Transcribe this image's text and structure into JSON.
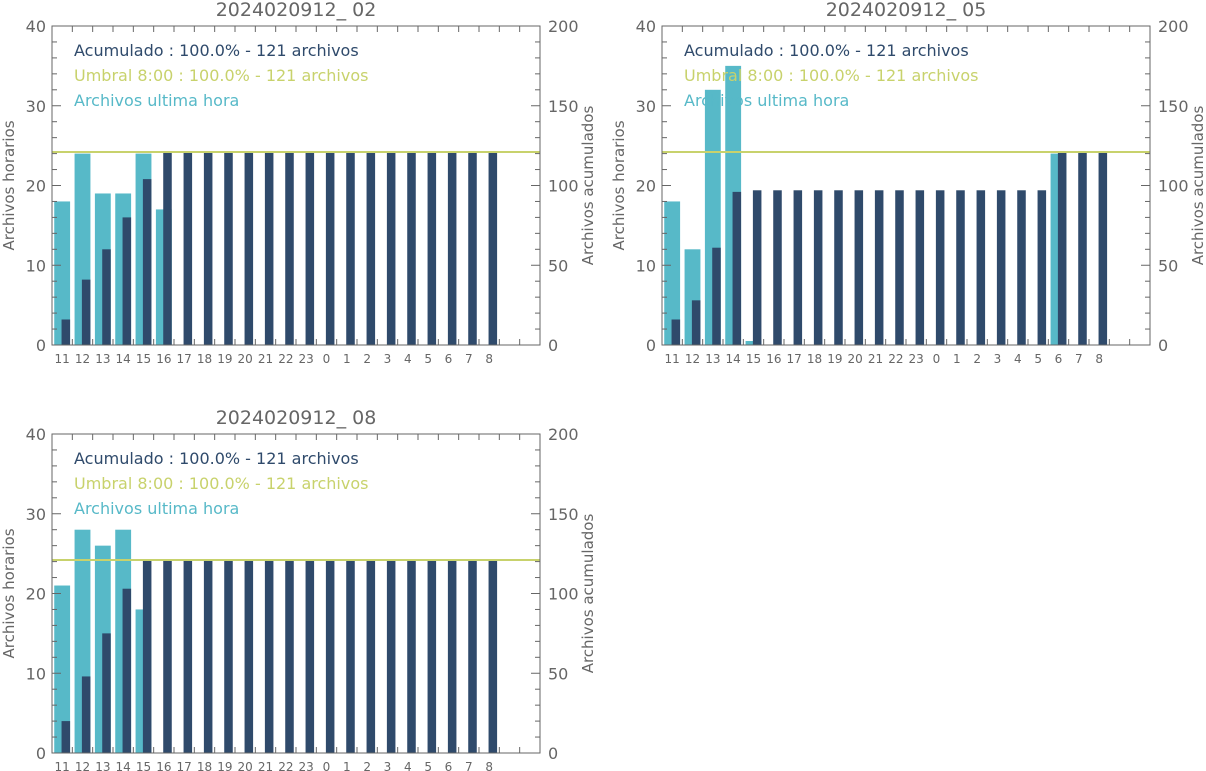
{
  "colors": {
    "accumulated": "#2f4a6b",
    "threshold": "#c8d26c",
    "hourly": "#57b9c8",
    "axis": "#666666"
  },
  "chart_data": [
    {
      "type": "bar",
      "title": "2024020912_ 02",
      "ylabel": "Archivos horarios",
      "y2label": "Archivos acumulados",
      "ylim": [
        0,
        40
      ],
      "y2lim": [
        0,
        200
      ],
      "yticks": [
        "0",
        "10",
        "20",
        "30",
        "40"
      ],
      "y2ticks": [
        "0",
        "50",
        "100",
        "150",
        "200"
      ],
      "categories": [
        "11",
        "12",
        "13",
        "14",
        "15",
        "16",
        "17",
        "18",
        "19",
        "20",
        "21",
        "22",
        "23",
        "0",
        "1",
        "2",
        "3",
        "4",
        "5",
        "6",
        "7",
        "8"
      ],
      "legend": [
        {
          "text": "Acumulado : 100.0% - 121 archivos",
          "color": "#2f4a6b"
        },
        {
          "text": "Umbral 8:00 : 100.0% - 121 archivos",
          "color": "#c8d26c"
        },
        {
          "text": "Archivos ultima hora",
          "color": "#57b9c8"
        }
      ],
      "threshold": 121,
      "series": [
        {
          "name": "Archivos ultima hora",
          "axis": "left",
          "values": [
            18,
            24,
            19,
            19,
            24,
            17,
            0,
            0,
            0,
            0,
            0,
            0,
            0,
            0,
            0,
            0,
            0,
            0,
            0,
            0,
            0,
            0
          ]
        },
        {
          "name": "Acumulado",
          "axis": "right",
          "values": [
            16,
            41,
            60,
            80,
            104,
            121,
            121,
            121,
            121,
            121,
            121,
            121,
            121,
            121,
            121,
            121,
            121,
            121,
            121,
            121,
            121,
            121
          ]
        }
      ]
    },
    {
      "type": "bar",
      "title": "2024020912_ 05",
      "ylabel": "Archivos horarios",
      "y2label": "Archivos acumulados",
      "ylim": [
        0,
        40
      ],
      "y2lim": [
        0,
        200
      ],
      "yticks": [
        "0",
        "10",
        "20",
        "30",
        "40"
      ],
      "y2ticks": [
        "0",
        "50",
        "100",
        "150",
        "200"
      ],
      "categories": [
        "11",
        "12",
        "13",
        "14",
        "15",
        "16",
        "17",
        "18",
        "19",
        "20",
        "21",
        "22",
        "23",
        "0",
        "1",
        "2",
        "3",
        "4",
        "5",
        "6",
        "7",
        "8"
      ],
      "legend": [
        {
          "text": "Acumulado : 100.0% - 121 archivos",
          "color": "#2f4a6b"
        },
        {
          "text": "Umbral 8:00 : 100.0% - 121 archivos",
          "color": "#c8d26c"
        },
        {
          "text": "Archivos ultima hora",
          "color": "#57b9c8"
        }
      ],
      "threshold": 121,
      "series": [
        {
          "name": "Archivos ultima hora",
          "axis": "left",
          "values": [
            18,
            12,
            32,
            35,
            0.5,
            0,
            0,
            0,
            0,
            0,
            0,
            0,
            0,
            0,
            0,
            0,
            0,
            0,
            0,
            24,
            0,
            0
          ]
        },
        {
          "name": "Acumulado",
          "axis": "right",
          "values": [
            16,
            28,
            61,
            96,
            97,
            97,
            97,
            97,
            97,
            97,
            97,
            97,
            97,
            97,
            97,
            97,
            97,
            97,
            97,
            121,
            121,
            121
          ]
        }
      ]
    },
    {
      "type": "bar",
      "title": "2024020912_ 08",
      "ylabel": "Archivos horarios",
      "y2label": "Archivos acumulados",
      "ylim": [
        0,
        40
      ],
      "y2lim": [
        0,
        200
      ],
      "yticks": [
        "0",
        "10",
        "20",
        "30",
        "40"
      ],
      "y2ticks": [
        "0",
        "50",
        "100",
        "150",
        "200"
      ],
      "categories": [
        "11",
        "12",
        "13",
        "14",
        "15",
        "16",
        "17",
        "18",
        "19",
        "20",
        "21",
        "22",
        "23",
        "0",
        "1",
        "2",
        "3",
        "4",
        "5",
        "6",
        "7",
        "8"
      ],
      "legend": [
        {
          "text": "Acumulado : 100.0% - 121 archivos",
          "color": "#2f4a6b"
        },
        {
          "text": "Umbral 8:00 : 100.0% - 121 archivos",
          "color": "#c8d26c"
        },
        {
          "text": "Archivos ultima hora",
          "color": "#57b9c8"
        }
      ],
      "threshold": 121,
      "series": [
        {
          "name": "Archivos ultima hora",
          "axis": "left",
          "values": [
            21,
            28,
            26,
            28,
            18,
            0,
            0,
            0,
            0,
            0,
            0,
            0,
            0,
            0,
            0,
            0,
            0,
            0,
            0,
            0,
            0,
            0
          ]
        },
        {
          "name": "Acumulado",
          "axis": "right",
          "values": [
            20,
            48,
            75,
            103,
            121,
            121,
            121,
            121,
            121,
            121,
            121,
            121,
            121,
            121,
            121,
            121,
            121,
            121,
            121,
            121,
            121,
            121
          ]
        }
      ]
    }
  ]
}
